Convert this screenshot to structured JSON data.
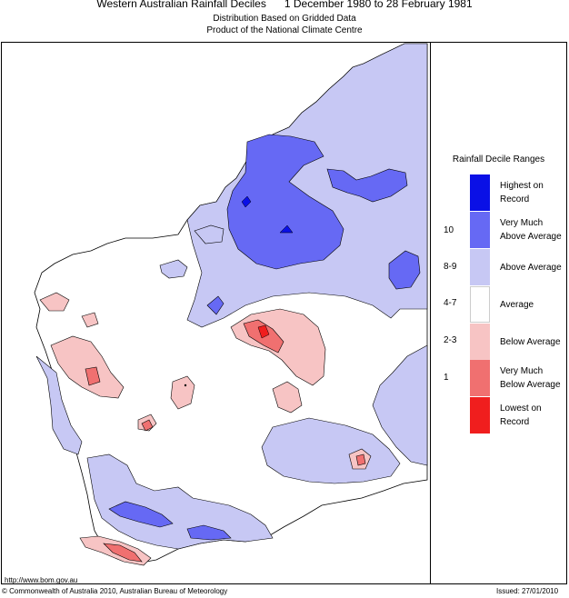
{
  "header": {
    "title": "Western Australian Rainfall Deciles      1 December 1980 to 28 February 1981",
    "subtitle_1": "Distribution Based on Gridded Data",
    "subtitle_2": "Product of the National Climate Centre"
  },
  "legend": {
    "title": "Rainfall Decile Ranges",
    "items": [
      {
        "label_1": "Highest on",
        "label_2": "Record",
        "color": "#0a10e6"
      },
      {
        "label_1": "Very Much",
        "label_2": "Above Average",
        "color": "#6669f4"
      },
      {
        "label_1": "Above Average",
        "label_2": "",
        "color": "#c7c8f4"
      },
      {
        "label_1": "Average",
        "label_2": "",
        "color": "#ffffff"
      },
      {
        "label_1": "Below Average",
        "label_2": "",
        "color": "#f7c4c4"
      },
      {
        "label_1": "Very Much",
        "label_2": "Below Average",
        "color": "#f07070"
      },
      {
        "label_1": "Lowest on",
        "label_2": "Record",
        "color": "#f01e1e"
      }
    ],
    "ranges": [
      "10",
      "8-9",
      "4-7",
      "2-3",
      "1"
    ]
  },
  "footer": {
    "url": "http://www.bom.gov.au",
    "copyright": "© Commonwealth of Australia 2010, Australian Bureau of Meteorology",
    "issued": "Issued: 27/01/2010"
  }
}
